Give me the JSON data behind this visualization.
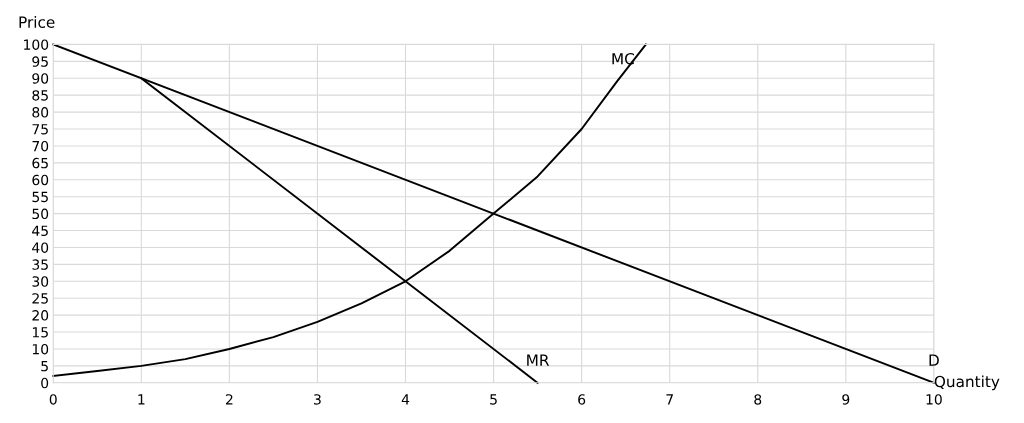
{
  "chart_data": {
    "type": "line",
    "xlabel": "Quantity",
    "ylabel": "Price",
    "xlim": [
      0,
      10
    ],
    "ylim": [
      0,
      100
    ],
    "xticks": [
      0,
      1,
      2,
      3,
      4,
      5,
      6,
      7,
      8,
      9,
      10
    ],
    "yticks": [
      0,
      5,
      10,
      15,
      20,
      25,
      30,
      35,
      40,
      45,
      50,
      55,
      60,
      65,
      70,
      75,
      80,
      85,
      90,
      95,
      100
    ],
    "grid": true,
    "legend": false,
    "marker": "none",
    "line_style": "solid",
    "series": [
      {
        "name": "D",
        "color": "#000000",
        "x": [
          0,
          10
        ],
        "values": [
          100,
          0
        ]
      },
      {
        "name": "MR",
        "color": "#000000",
        "x": [
          1,
          5.5
        ],
        "values": [
          90,
          0
        ]
      },
      {
        "name": "MC",
        "color": "#000000",
        "x": [
          0,
          0.5,
          1,
          1.5,
          2,
          2.5,
          3,
          3.5,
          4,
          4.5,
          5,
          5.5,
          6,
          6.4,
          6.73
        ],
        "values": [
          2,
          3.5,
          5,
          7,
          10,
          13.5,
          18,
          23.5,
          30,
          39,
          50,
          61,
          75,
          89,
          100
        ]
      }
    ]
  }
}
